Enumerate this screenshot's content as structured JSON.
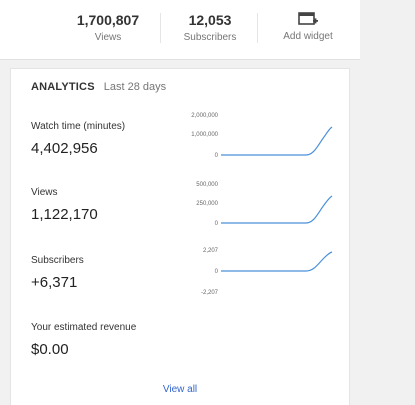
{
  "stats": {
    "views": {
      "value": "1,700,807",
      "label": "Views"
    },
    "subscribers": {
      "value": "12,053",
      "label": "Subscribers"
    },
    "widget": {
      "label": "Add widget",
      "icon": "add-widget-icon"
    }
  },
  "analytics": {
    "title": "ANALYTICS",
    "period": "Last 28 days",
    "metrics": [
      {
        "label": "Watch time (minutes)",
        "value": "4,402,956",
        "ticks": [
          "2,000,000",
          "1,000,000",
          "0"
        ]
      },
      {
        "label": "Views",
        "value": "1,122,170",
        "ticks": [
          "500,000",
          "250,000",
          "0"
        ]
      },
      {
        "label": "Subscribers",
        "value": "+6,371",
        "ticks": [
          "2,207",
          "0",
          "-2,207"
        ]
      },
      {
        "label": "Your estimated revenue",
        "value": "$0.00"
      }
    ],
    "view_all": "View all",
    "line_color": "#4a90d9"
  }
}
